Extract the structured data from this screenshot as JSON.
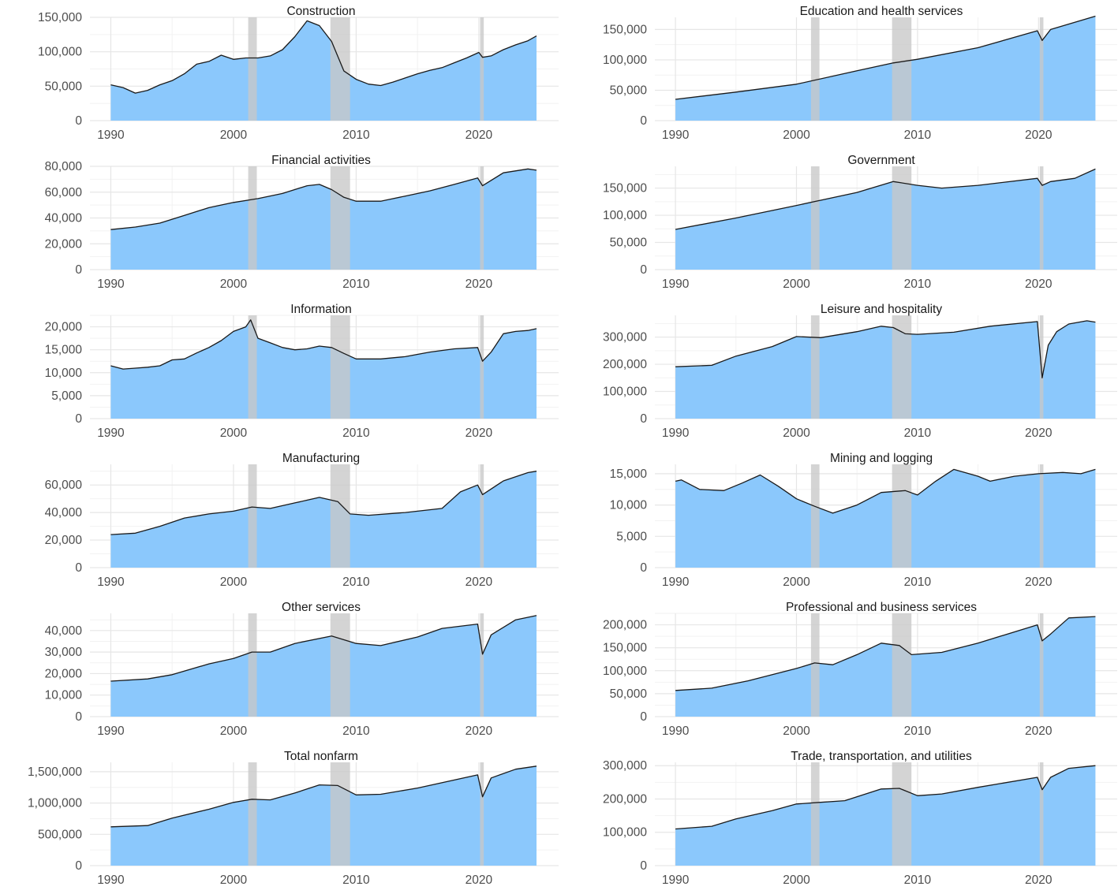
{
  "colors": {
    "area_fill": "#8bc8fc",
    "line": "#1a1a1a",
    "recession": "#c8c8c8",
    "grid_major": "#e6e6e6",
    "grid_minor": "#f2f2f2"
  },
  "chart_data": [
    {
      "type": "area",
      "title": "Construction",
      "xlim": [
        1990,
        2024.7
      ],
      "ylim": [
        0,
        150000
      ],
      "yticks": [
        0,
        50000,
        100000,
        150000
      ],
      "ytick_labels": [
        "0",
        "50,000",
        "100,000",
        "150,000"
      ],
      "xticks": [
        1990,
        2000,
        2010,
        2020
      ],
      "xtick_labels": [
        "1990",
        "2000",
        "2010",
        "2020"
      ],
      "recessions": [
        [
          2001.2,
          2001.9
        ],
        [
          2007.9,
          2009.5
        ],
        [
          2020.1,
          2020.4
        ]
      ],
      "x": [
        1990,
        1991,
        1992,
        1993,
        1994,
        1995,
        1996,
        1997,
        1998,
        1999,
        2000,
        2001,
        2002,
        2003,
        2004,
        2005,
        2006,
        2007,
        2008,
        2009,
        2010,
        2011,
        2012,
        2013,
        2014,
        2015,
        2016,
        2017,
        2018,
        2019,
        2020,
        2020.3,
        2021,
        2022,
        2023,
        2024,
        2024.7
      ],
      "y": [
        52000,
        48000,
        40000,
        44000,
        52000,
        58000,
        68000,
        82000,
        86000,
        95000,
        89000,
        91000,
        91000,
        94000,
        103000,
        122000,
        145000,
        138000,
        115000,
        72000,
        60000,
        53000,
        51000,
        56000,
        62000,
        68000,
        73000,
        77000,
        84000,
        91000,
        99000,
        92000,
        94000,
        103000,
        110000,
        116000,
        123000
      ]
    },
    {
      "type": "area",
      "title": "Education and health services",
      "xlim": [
        1990,
        2024.7
      ],
      "ylim": [
        0,
        170000
      ],
      "yticks": [
        0,
        50000,
        100000,
        150000
      ],
      "ytick_labels": [
        "0",
        "50,000",
        "100,000",
        "150,000"
      ],
      "xticks": [
        1990,
        2000,
        2010,
        2020
      ],
      "xtick_labels": [
        "1990",
        "2000",
        "2010",
        "2020"
      ],
      "recessions": [
        [
          2001.2,
          2001.9
        ],
        [
          2007.9,
          2009.5
        ],
        [
          2020.1,
          2020.4
        ]
      ],
      "x": [
        1990,
        1995,
        2000,
        2005,
        2008,
        2010,
        2015,
        2019.9,
        2020.3,
        2021,
        2024.7
      ],
      "y": [
        35000,
        47000,
        60000,
        82000,
        95000,
        101000,
        120000,
        148000,
        132000,
        150000,
        172000
      ]
    },
    {
      "type": "area",
      "title": "Financial activities",
      "xlim": [
        1990,
        2024.7
      ],
      "ylim": [
        0,
        80000
      ],
      "yticks": [
        0,
        20000,
        40000,
        60000,
        80000
      ],
      "ytick_labels": [
        "0",
        "20,000",
        "40,000",
        "60,000",
        "80,000"
      ],
      "xticks": [
        1990,
        2000,
        2010,
        2020
      ],
      "xtick_labels": [
        "1990",
        "2000",
        "2010",
        "2020"
      ],
      "recessions": [
        [
          2001.2,
          2001.9
        ],
        [
          2007.9,
          2009.5
        ],
        [
          2020.1,
          2020.4
        ]
      ],
      "x": [
        1990,
        1992,
        1994,
        1996,
        1998,
        2000,
        2002,
        2004,
        2006,
        2007,
        2008,
        2009,
        2010,
        2012,
        2014,
        2016,
        2018,
        2019.9,
        2020.3,
        2022,
        2024,
        2024.7
      ],
      "y": [
        31000,
        33000,
        36000,
        42000,
        48000,
        52000,
        55000,
        59000,
        65000,
        66000,
        62000,
        56000,
        53000,
        53000,
        57000,
        61000,
        66000,
        71000,
        65000,
        75000,
        78000,
        77000
      ]
    },
    {
      "type": "area",
      "title": "Government",
      "xlim": [
        1990,
        2024.7
      ],
      "ylim": [
        0,
        190000
      ],
      "yticks": [
        0,
        50000,
        100000,
        150000
      ],
      "ytick_labels": [
        "0",
        "50,000",
        "100,000",
        "150,000"
      ],
      "xticks": [
        1990,
        2000,
        2010,
        2020
      ],
      "xtick_labels": [
        "1990",
        "2000",
        "2010",
        "2020"
      ],
      "recessions": [
        [
          2001.2,
          2001.9
        ],
        [
          2007.9,
          2009.5
        ],
        [
          2020.1,
          2020.4
        ]
      ],
      "x": [
        1990,
        1995,
        2000,
        2005,
        2008,
        2010,
        2012,
        2015,
        2019.9,
        2020.3,
        2021,
        2023,
        2024.7
      ],
      "y": [
        74000,
        95000,
        118000,
        142000,
        162000,
        155000,
        150000,
        155000,
        168000,
        155000,
        162000,
        168000,
        185000
      ]
    },
    {
      "type": "area",
      "title": "Information",
      "xlim": [
        1990,
        2024.7
      ],
      "ylim": [
        0,
        22500
      ],
      "yticks": [
        0,
        5000,
        10000,
        15000,
        20000
      ],
      "ytick_labels": [
        "0",
        "5,000",
        "10,000",
        "15,000",
        "20,000"
      ],
      "xticks": [
        1990,
        2000,
        2010,
        2020
      ],
      "xtick_labels": [
        "1990",
        "2000",
        "2010",
        "2020"
      ],
      "recessions": [
        [
          2001.2,
          2001.9
        ],
        [
          2007.9,
          2009.5
        ],
        [
          2020.1,
          2020.4
        ]
      ],
      "x": [
        1990,
        1991,
        1992,
        1993,
        1994,
        1995,
        1996,
        1997,
        1998,
        1999,
        2000,
        2001,
        2001.4,
        2002,
        2003,
        2004,
        2005,
        2006,
        2007,
        2008,
        2009,
        2010,
        2012,
        2014,
        2016,
        2018,
        2019.9,
        2020.3,
        2021,
        2022,
        2023,
        2024,
        2024.7
      ],
      "y": [
        11500,
        10800,
        11000,
        11200,
        11500,
        12800,
        13000,
        14300,
        15500,
        17000,
        19000,
        20000,
        21500,
        17500,
        16500,
        15500,
        15000,
        15200,
        15800,
        15500,
        14200,
        13000,
        13000,
        13500,
        14500,
        15200,
        15500,
        12500,
        14500,
        18500,
        19000,
        19200,
        19600
      ]
    },
    {
      "type": "area",
      "title": "Leisure and hospitality",
      "xlim": [
        1990,
        2024.7
      ],
      "ylim": [
        0,
        380000
      ],
      "yticks": [
        0,
        100000,
        200000,
        300000
      ],
      "ytick_labels": [
        "0",
        "100,000",
        "200,000",
        "300,000"
      ],
      "xticks": [
        1990,
        2000,
        2010,
        2020
      ],
      "xtick_labels": [
        "1990",
        "2000",
        "2010",
        "2020"
      ],
      "recessions": [
        [
          2001.2,
          2001.9
        ],
        [
          2007.9,
          2009.5
        ],
        [
          2020.1,
          2020.4
        ]
      ],
      "x": [
        1990,
        1993,
        1995,
        1998,
        2000,
        2002,
        2005,
        2007,
        2008,
        2009,
        2010,
        2013,
        2016,
        2019.9,
        2020.3,
        2020.8,
        2021.5,
        2022.5,
        2024,
        2024.7
      ],
      "y": [
        191000,
        196000,
        230000,
        265000,
        302000,
        298000,
        320000,
        340000,
        335000,
        312000,
        310000,
        318000,
        340000,
        357000,
        150000,
        270000,
        320000,
        348000,
        360000,
        355000
      ]
    },
    {
      "type": "area",
      "title": "Manufacturing",
      "xlim": [
        1990,
        2024.7
      ],
      "ylim": [
        0,
        75000
      ],
      "yticks": [
        0,
        20000,
        40000,
        60000
      ],
      "ytick_labels": [
        "0",
        "20,000",
        "40,000",
        "60,000"
      ],
      "xticks": [
        1990,
        2000,
        2010,
        2020
      ],
      "xtick_labels": [
        "1990",
        "2000",
        "2010",
        "2020"
      ],
      "recessions": [
        [
          2001.2,
          2001.9
        ],
        [
          2007.9,
          2009.5
        ],
        [
          2020.1,
          2020.4
        ]
      ],
      "x": [
        1990,
        1992,
        1994,
        1996,
        1998,
        2000,
        2001.5,
        2003,
        2005,
        2007,
        2008.5,
        2009.5,
        2011,
        2014,
        2017,
        2018.5,
        2019.9,
        2020.3,
        2022,
        2024,
        2024.7
      ],
      "y": [
        24000,
        25000,
        30000,
        36000,
        39000,
        41000,
        44000,
        43000,
        47000,
        51000,
        48000,
        39000,
        38000,
        40000,
        43000,
        55000,
        60000,
        53000,
        63000,
        69000,
        70000
      ]
    },
    {
      "type": "area",
      "title": "Mining and logging",
      "xlim": [
        1990,
        2024.7
      ],
      "ylim": [
        0,
        16500
      ],
      "yticks": [
        0,
        5000,
        10000,
        15000
      ],
      "ytick_labels": [
        "0",
        "5,000",
        "10,000",
        "15,000"
      ],
      "xticks": [
        1990,
        2000,
        2010,
        2020
      ],
      "xtick_labels": [
        "1990",
        "2000",
        "2010",
        "2020"
      ],
      "recessions": [
        [
          2001.2,
          2001.9
        ],
        [
          2007.9,
          2009.5
        ],
        [
          2020.1,
          2020.4
        ]
      ],
      "x": [
        1990,
        1990.5,
        1992,
        1994,
        1995.5,
        1997,
        1998.5,
        2000,
        2001.5,
        2003,
        2005,
        2007,
        2009,
        2010,
        2011.5,
        2013,
        2015,
        2016,
        2018,
        2020,
        2022,
        2023.5,
        2024.7
      ],
      "y": [
        13800,
        14000,
        12500,
        12300,
        13500,
        14800,
        13000,
        11000,
        9800,
        8700,
        10000,
        12000,
        12300,
        11600,
        13800,
        15700,
        14600,
        13800,
        14600,
        15000,
        15200,
        15000,
        15700
      ]
    },
    {
      "type": "area",
      "title": "Other services",
      "xlim": [
        1990,
        2024.7
      ],
      "ylim": [
        0,
        48000
      ],
      "yticks": [
        0,
        10000,
        20000,
        30000,
        40000
      ],
      "ytick_labels": [
        "0",
        "10,000",
        "20,000",
        "30,000",
        "40,000"
      ],
      "xticks": [
        1990,
        2000,
        2010,
        2020
      ],
      "xtick_labels": [
        "1990",
        "2000",
        "2010",
        "2020"
      ],
      "recessions": [
        [
          2001.2,
          2001.9
        ],
        [
          2007.9,
          2009.5
        ],
        [
          2020.1,
          2020.4
        ]
      ],
      "x": [
        1990,
        1993,
        1995,
        1998,
        2000,
        2001.5,
        2003,
        2005,
        2008,
        2010,
        2012,
        2015,
        2017,
        2019.9,
        2020.3,
        2021,
        2023,
        2024.7
      ],
      "y": [
        16500,
        17500,
        19500,
        24500,
        27000,
        30000,
        30000,
        34000,
        37500,
        34000,
        33000,
        37000,
        41000,
        43000,
        29000,
        38000,
        45000,
        47000
      ]
    },
    {
      "type": "area",
      "title": "Professional and business services",
      "xlim": [
        1990,
        2024.7
      ],
      "ylim": [
        0,
        225000
      ],
      "yticks": [
        0,
        50000,
        100000,
        150000,
        200000
      ],
      "ytick_labels": [
        "0",
        "50,000",
        "100,000",
        "150,000",
        "200,000"
      ],
      "xticks": [
        1990,
        2000,
        2010,
        2020
      ],
      "xtick_labels": [
        "1990",
        "2000",
        "2010",
        "2020"
      ],
      "recessions": [
        [
          2001.2,
          2001.9
        ],
        [
          2007.9,
          2009.5
        ],
        [
          2020.1,
          2020.4
        ]
      ],
      "x": [
        1990,
        1993,
        1996,
        2000,
        2001.5,
        2003,
        2005,
        2007,
        2008.5,
        2009.5,
        2012,
        2015,
        2019.9,
        2020.3,
        2021,
        2022.5,
        2024.7
      ],
      "y": [
        57000,
        62000,
        78000,
        105000,
        117000,
        113000,
        135000,
        160000,
        155000,
        135000,
        140000,
        160000,
        200000,
        165000,
        180000,
        215000,
        218000
      ]
    },
    {
      "type": "area",
      "title": "Total nonfarm",
      "xlim": [
        1990,
        2024.7
      ],
      "ylim": [
        0,
        1650000
      ],
      "yticks": [
        0,
        500000,
        1000000,
        1500000
      ],
      "ytick_labels": [
        "0",
        "500,000",
        "1,000,000",
        "1,500,000"
      ],
      "xticks": [
        1990,
        2000,
        2010,
        2020
      ],
      "xtick_labels": [
        "1990",
        "2000",
        "2010",
        "2020"
      ],
      "recessions": [
        [
          2001.2,
          2001.9
        ],
        [
          2007.9,
          2009.5
        ],
        [
          2020.1,
          2020.4
        ]
      ],
      "x": [
        1990,
        1993,
        1995,
        1998,
        2000,
        2001.5,
        2003,
        2005,
        2007,
        2008.5,
        2010,
        2012,
        2015,
        2019.9,
        2020.3,
        2021,
        2023,
        2024.7
      ],
      "y": [
        620000,
        640000,
        760000,
        900000,
        1010000,
        1060000,
        1050000,
        1160000,
        1290000,
        1280000,
        1130000,
        1140000,
        1240000,
        1450000,
        1100000,
        1400000,
        1540000,
        1590000
      ]
    },
    {
      "type": "area",
      "title": "Trade, transportation, and utilities",
      "xlim": [
        1990,
        2024.7
      ],
      "ylim": [
        0,
        310000
      ],
      "yticks": [
        0,
        100000,
        200000,
        300000
      ],
      "ytick_labels": [
        "0",
        "100,000",
        "200,000",
        "300,000"
      ],
      "xticks": [
        1990,
        2000,
        2010,
        2020
      ],
      "xtick_labels": [
        "1990",
        "2000",
        "2010",
        "2020"
      ],
      "recessions": [
        [
          2001.2,
          2001.9
        ],
        [
          2007.9,
          2009.5
        ],
        [
          2020.1,
          2020.4
        ]
      ],
      "x": [
        1990,
        1993,
        1995,
        1998,
        2000,
        2002,
        2004,
        2007,
        2008.5,
        2010,
        2012,
        2015,
        2019.9,
        2020.3,
        2021,
        2022.5,
        2024.7
      ],
      "y": [
        110000,
        118000,
        140000,
        165000,
        185000,
        190000,
        195000,
        230000,
        232000,
        210000,
        215000,
        235000,
        265000,
        228000,
        265000,
        292000,
        300000
      ]
    }
  ]
}
